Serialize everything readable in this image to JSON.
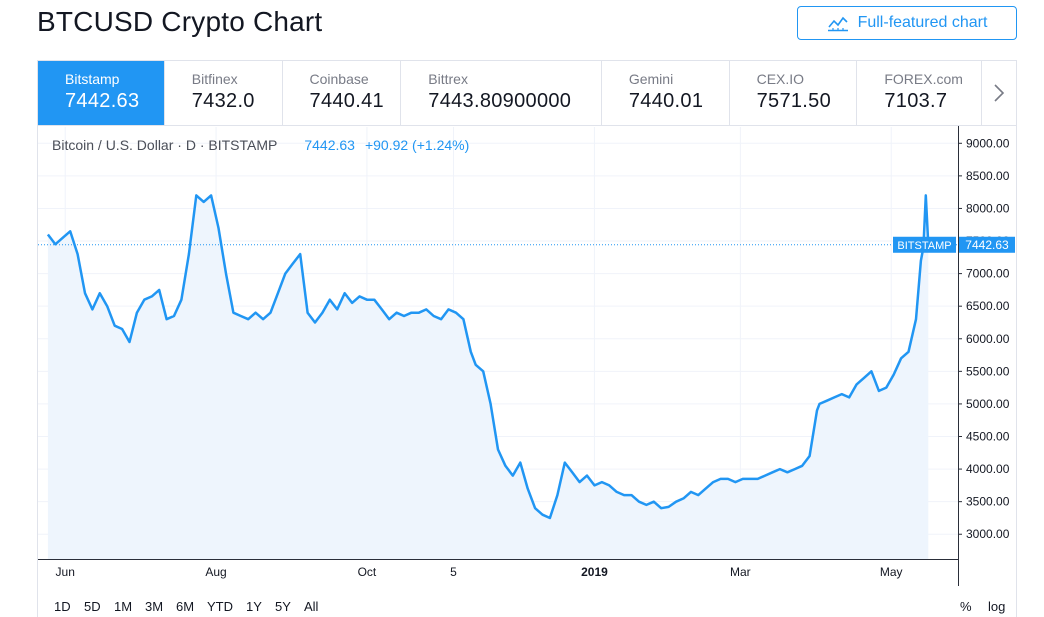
{
  "page": {
    "title": "BTCUSD Crypto Chart",
    "full_featured_label": "Full-featured chart"
  },
  "tabs": [
    {
      "name": "Bitstamp",
      "price": "7442.63",
      "active": true
    },
    {
      "name": "Bitfinex",
      "price": "7432.0",
      "active": false
    },
    {
      "name": "Coinbase",
      "price": "7440.41",
      "active": false
    },
    {
      "name": "Bittrex",
      "price": "7443.80900000",
      "active": false
    },
    {
      "name": "Gemini",
      "price": "7440.01",
      "active": false
    },
    {
      "name": "CEX.IO",
      "price": "7571.50",
      "active": false
    },
    {
      "name": "FOREX.com",
      "price": "7103.7",
      "active": false
    }
  ],
  "legend": {
    "symbol": "Bitcoin / U.S. Dollar · D · BITSTAMP",
    "price": "7442.63",
    "change": "+90.92 (+1.24%)"
  },
  "range_buttons": [
    "1D",
    "5D",
    "1M",
    "3M",
    "6M",
    "YTD",
    "1Y",
    "5Y",
    "All"
  ],
  "scale_buttons": [
    "%",
    "log"
  ],
  "colors": {
    "accent": "#2196f3",
    "line": "#2196f3",
    "area_fill": "#eef5fd",
    "grid": "#f0f3fa",
    "text": "#131722",
    "muted": "#787b86"
  },
  "icons": {
    "full_featured": "chart-line-icon",
    "next": "chevron-right-icon"
  },
  "chart_data": {
    "type": "line",
    "series": [
      {
        "name": "BITSTAMP",
        "last_value": 7442.63,
        "x": [
          "2018-05-25",
          "2018-05-28",
          "2018-05-31",
          "2018-06-03",
          "2018-06-06",
          "2018-06-09",
          "2018-06-12",
          "2018-06-15",
          "2018-06-18",
          "2018-06-21",
          "2018-06-24",
          "2018-06-27",
          "2018-06-30",
          "2018-07-03",
          "2018-07-06",
          "2018-07-09",
          "2018-07-12",
          "2018-07-15",
          "2018-07-18",
          "2018-07-21",
          "2018-07-24",
          "2018-07-27",
          "2018-07-30",
          "2018-08-02",
          "2018-08-05",
          "2018-08-08",
          "2018-08-11",
          "2018-08-14",
          "2018-08-17",
          "2018-08-20",
          "2018-08-23",
          "2018-08-26",
          "2018-08-29",
          "2018-09-01",
          "2018-09-04",
          "2018-09-07",
          "2018-09-10",
          "2018-09-13",
          "2018-09-16",
          "2018-09-19",
          "2018-09-22",
          "2018-09-25",
          "2018-09-28",
          "2018-10-01",
          "2018-10-04",
          "2018-10-07",
          "2018-10-10",
          "2018-10-13",
          "2018-10-16",
          "2018-10-19",
          "2018-10-22",
          "2018-10-25",
          "2018-10-28",
          "2018-10-31",
          "2018-11-03",
          "2018-11-06",
          "2018-11-09",
          "2018-11-12",
          "2018-11-14",
          "2018-11-17",
          "2018-11-20",
          "2018-11-23",
          "2018-11-26",
          "2018-11-29",
          "2018-12-02",
          "2018-12-05",
          "2018-12-08",
          "2018-12-11",
          "2018-12-14",
          "2018-12-17",
          "2018-12-20",
          "2018-12-23",
          "2018-12-26",
          "2018-12-29",
          "2019-01-01",
          "2019-01-04",
          "2019-01-07",
          "2019-01-10",
          "2019-01-13",
          "2019-01-16",
          "2019-01-19",
          "2019-01-22",
          "2019-01-25",
          "2019-01-28",
          "2019-01-31",
          "2019-02-03",
          "2019-02-06",
          "2019-02-09",
          "2019-02-12",
          "2019-02-15",
          "2019-02-18",
          "2019-02-21",
          "2019-02-24",
          "2019-02-27",
          "2019-03-02",
          "2019-03-05",
          "2019-03-08",
          "2019-03-11",
          "2019-03-14",
          "2019-03-17",
          "2019-03-20",
          "2019-03-23",
          "2019-03-26",
          "2019-03-29",
          "2019-04-01",
          "2019-04-02",
          "2019-04-05",
          "2019-04-08",
          "2019-04-11",
          "2019-04-14",
          "2019-04-17",
          "2019-04-20",
          "2019-04-23",
          "2019-04-26",
          "2019-04-29",
          "2019-05-02",
          "2019-05-05",
          "2019-05-08",
          "2019-05-11",
          "2019-05-13",
          "2019-05-14",
          "2019-05-15",
          "2019-05-16"
        ],
        "y": [
          7600,
          7450,
          7550,
          7650,
          7300,
          6700,
          6450,
          6700,
          6500,
          6200,
          6150,
          5950,
          6400,
          6600,
          6650,
          6750,
          6300,
          6350,
          6600,
          7300,
          8200,
          8100,
          8200,
          7700,
          7000,
          6400,
          6350,
          6300,
          6400,
          6300,
          6400,
          6700,
          7000,
          7150,
          7300,
          6400,
          6250,
          6400,
          6600,
          6450,
          6700,
          6550,
          6650,
          6600,
          6600,
          6450,
          6300,
          6400,
          6350,
          6400,
          6400,
          6450,
          6350,
          6300,
          6450,
          6400,
          6300,
          5800,
          5600,
          5500,
          5000,
          4300,
          4050,
          3900,
          4100,
          3700,
          3400,
          3300,
          3250,
          3600,
          4100,
          3950,
          3800,
          3900,
          3750,
          3800,
          3750,
          3650,
          3600,
          3600,
          3500,
          3450,
          3500,
          3400,
          3420,
          3500,
          3550,
          3650,
          3600,
          3700,
          3800,
          3850,
          3850,
          3800,
          3850,
          3850,
          3850,
          3900,
          3950,
          4000,
          3950,
          4000,
          4050,
          4200,
          4900,
          5000,
          5050,
          5100,
          5150,
          5100,
          5300,
          5400,
          5500,
          5200,
          5250,
          5450,
          5700,
          5800,
          6300,
          7200,
          7400,
          8200,
          7442.63
        ]
      }
    ],
    "x_ticks": [
      "Jun",
      "Aug",
      "Oct",
      "5",
      "2019",
      "Mar",
      "May"
    ],
    "y_ticks": [
      3000,
      3500,
      4000,
      4500,
      5000,
      5500,
      6000,
      6500,
      7000,
      7500,
      8000,
      8500,
      9000
    ],
    "y_tick_labels": [
      "3000.00",
      "3500.00",
      "4000.00",
      "4500.00",
      "5000.00",
      "5500.00",
      "6000.00",
      "6500.00",
      "7000.00",
      "7500.00",
      "8000.00",
      "8500.00",
      "9000.00"
    ],
    "ylim": [
      2620,
      9250
    ],
    "last_price_label": "BITSTAMP",
    "last_price_value": "7442.63",
    "grid": true
  }
}
